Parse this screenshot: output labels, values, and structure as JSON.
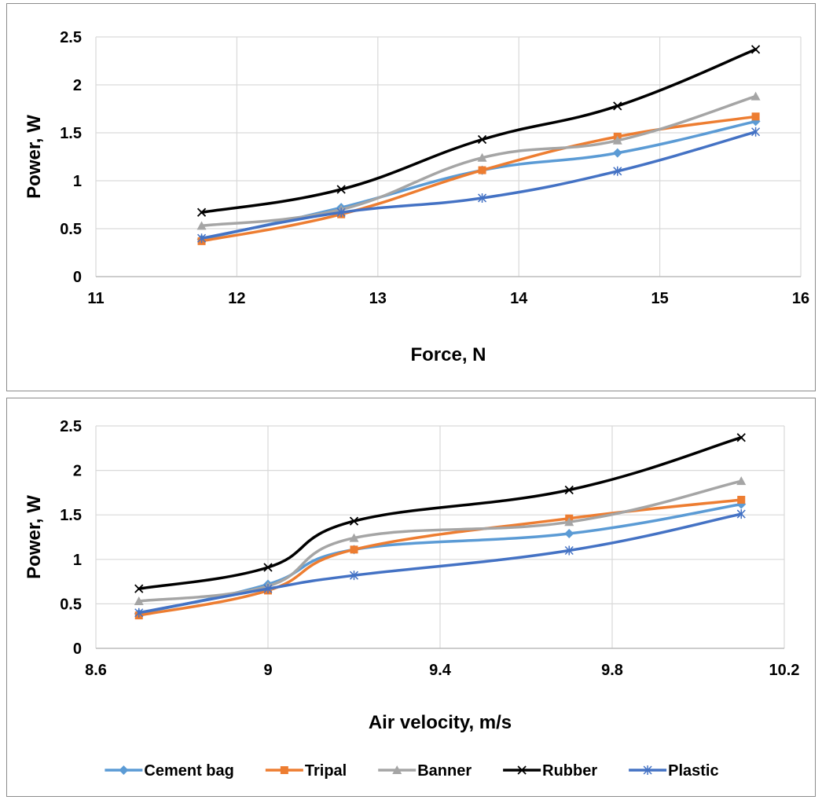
{
  "chart_data": [
    {
      "type": "line",
      "xlabel": "Force, N",
      "ylabel": "Power, W",
      "xlim": [
        11,
        16
      ],
      "ylim": [
        0,
        2.5
      ],
      "x_ticks": [
        "11",
        "12",
        "13",
        "14",
        "15",
        "16"
      ],
      "y_ticks": [
        "0",
        "0.5",
        "1",
        "1.5",
        "2",
        "2.5"
      ],
      "grid": true,
      "x": [
        11.75,
        12.74,
        13.74,
        14.7,
        15.68
      ],
      "series": [
        {
          "name": "Cement bag",
          "color": "#5b9bd5",
          "marker": "diamond",
          "values": [
            0.39,
            0.72,
            1.11,
            1.29,
            1.62
          ]
        },
        {
          "name": "Tripal",
          "color": "#ed7d31",
          "marker": "square",
          "values": [
            0.37,
            0.65,
            1.11,
            1.46,
            1.67
          ]
        },
        {
          "name": "Banner",
          "color": "#a5a5a5",
          "marker": "triangle",
          "values": [
            0.53,
            0.7,
            1.24,
            1.42,
            1.88
          ]
        },
        {
          "name": "Rubber",
          "color": "#000000",
          "marker": "x",
          "values": [
            0.67,
            0.91,
            1.43,
            1.78,
            2.37
          ]
        },
        {
          "name": "Plastic",
          "color": "#4472c4",
          "marker": "star",
          "values": [
            0.4,
            0.67,
            0.82,
            1.1,
            1.51
          ]
        }
      ]
    },
    {
      "type": "line",
      "xlabel": "Air velocity, m/s",
      "ylabel": "Power, W",
      "xlim": [
        8.6,
        10.2
      ],
      "ylim": [
        0,
        2.5
      ],
      "x_ticks": [
        "8.6",
        "9",
        "9.4",
        "9.8",
        "10.2"
      ],
      "y_ticks": [
        "0",
        "0.5",
        "1",
        "1.5",
        "2",
        "2.5"
      ],
      "grid": true,
      "legend": "bottom",
      "x": [
        8.7,
        9.0,
        9.2,
        9.7,
        10.1
      ],
      "series": [
        {
          "name": "Cement bag",
          "color": "#5b9bd5",
          "marker": "diamond",
          "values": [
            0.39,
            0.72,
            1.11,
            1.29,
            1.62
          ]
        },
        {
          "name": "Tripal",
          "color": "#ed7d31",
          "marker": "square",
          "values": [
            0.37,
            0.65,
            1.11,
            1.46,
            1.67
          ]
        },
        {
          "name": "Banner",
          "color": "#a5a5a5",
          "marker": "triangle",
          "values": [
            0.53,
            0.7,
            1.24,
            1.42,
            1.88
          ]
        },
        {
          "name": "Rubber",
          "color": "#000000",
          "marker": "x",
          "values": [
            0.67,
            0.91,
            1.43,
            1.78,
            2.37
          ]
        },
        {
          "name": "Plastic",
          "color": "#4472c4",
          "marker": "star",
          "values": [
            0.4,
            0.67,
            0.82,
            1.1,
            1.51
          ]
        }
      ]
    }
  ]
}
